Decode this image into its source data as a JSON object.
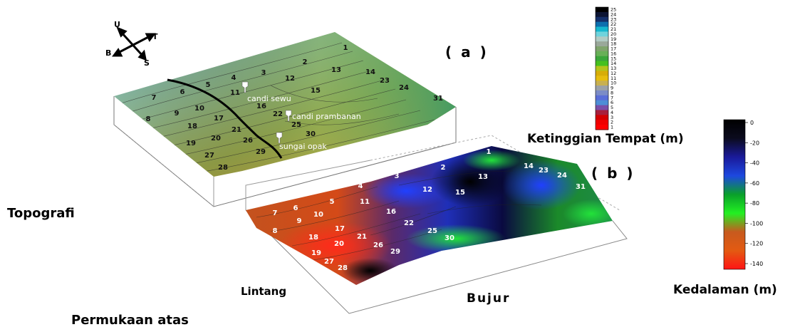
{
  "compass": {
    "north": "U",
    "east": "T",
    "west": "B",
    "south": "S"
  },
  "panel_a": {
    "label": "( a )",
    "points": [
      "1",
      "2",
      "3",
      "4",
      "5",
      "6",
      "7",
      "8",
      "9",
      "10",
      "11",
      "12",
      "13",
      "14",
      "15",
      "16",
      "17",
      "18",
      "19",
      "20",
      "21",
      "22",
      "23",
      "24",
      "25",
      "26",
      "27",
      "28",
      "29",
      "30",
      "31"
    ],
    "markers": [
      "candi sewu",
      "candi prambanan",
      "sungai opak"
    ]
  },
  "panel_b": {
    "label": "( b )",
    "points": [
      "1",
      "2",
      "3",
      "4",
      "5",
      "6",
      "7",
      "8",
      "9",
      "10",
      "11",
      "12",
      "13",
      "14",
      "15",
      "16",
      "17",
      "18",
      "19",
      "20",
      "21",
      "22",
      "23",
      "24",
      "25",
      "26",
      "27",
      "28",
      "29",
      "30",
      "31"
    ]
  },
  "labels": {
    "topografi": "Topografi",
    "permukaan": "Permukaan atas",
    "lintang": "Lintang",
    "bujur": "Bujur"
  },
  "legend_elevation": {
    "title": "Ketinggian Tempat (m)",
    "ticks": [
      "25",
      "24",
      "23",
      "22",
      "21",
      "20",
      "19",
      "18",
      "17",
      "16",
      "15",
      "14",
      "13",
      "12",
      "11",
      "10",
      "9",
      "8",
      "7",
      "6",
      "5",
      "4",
      "3",
      "2",
      "1"
    ],
    "colors": [
      "#000000",
      "#0d1533",
      "#16306a",
      "#0e6fae",
      "#17b8cf",
      "#6fd3dc",
      "#b2cbc4",
      "#9aa89a",
      "#7fa46c",
      "#68b057",
      "#3aa63a",
      "#45c01e",
      "#b3c41a",
      "#d7ad08",
      "#e7bd0e",
      "#c8b050",
      "#9ba1a8",
      "#7c8cc6",
      "#5a6ed8",
      "#4e8ed6",
      "#7a4fa8",
      "#a7203c",
      "#d40000",
      "#f00000",
      "#ff0000"
    ]
  },
  "legend_depth": {
    "title": "Kedalaman (m)",
    "ticks": [
      "0",
      "-20",
      "-40",
      "-60",
      "-80",
      "-100",
      "-120",
      "-140"
    ],
    "colors": [
      "#000000",
      "#0b0b1e",
      "#1a1a9a",
      "#1d48e0",
      "#0aa02a",
      "#22f022",
      "#c85a1e",
      "#e35a12",
      "#ff1414"
    ]
  }
}
